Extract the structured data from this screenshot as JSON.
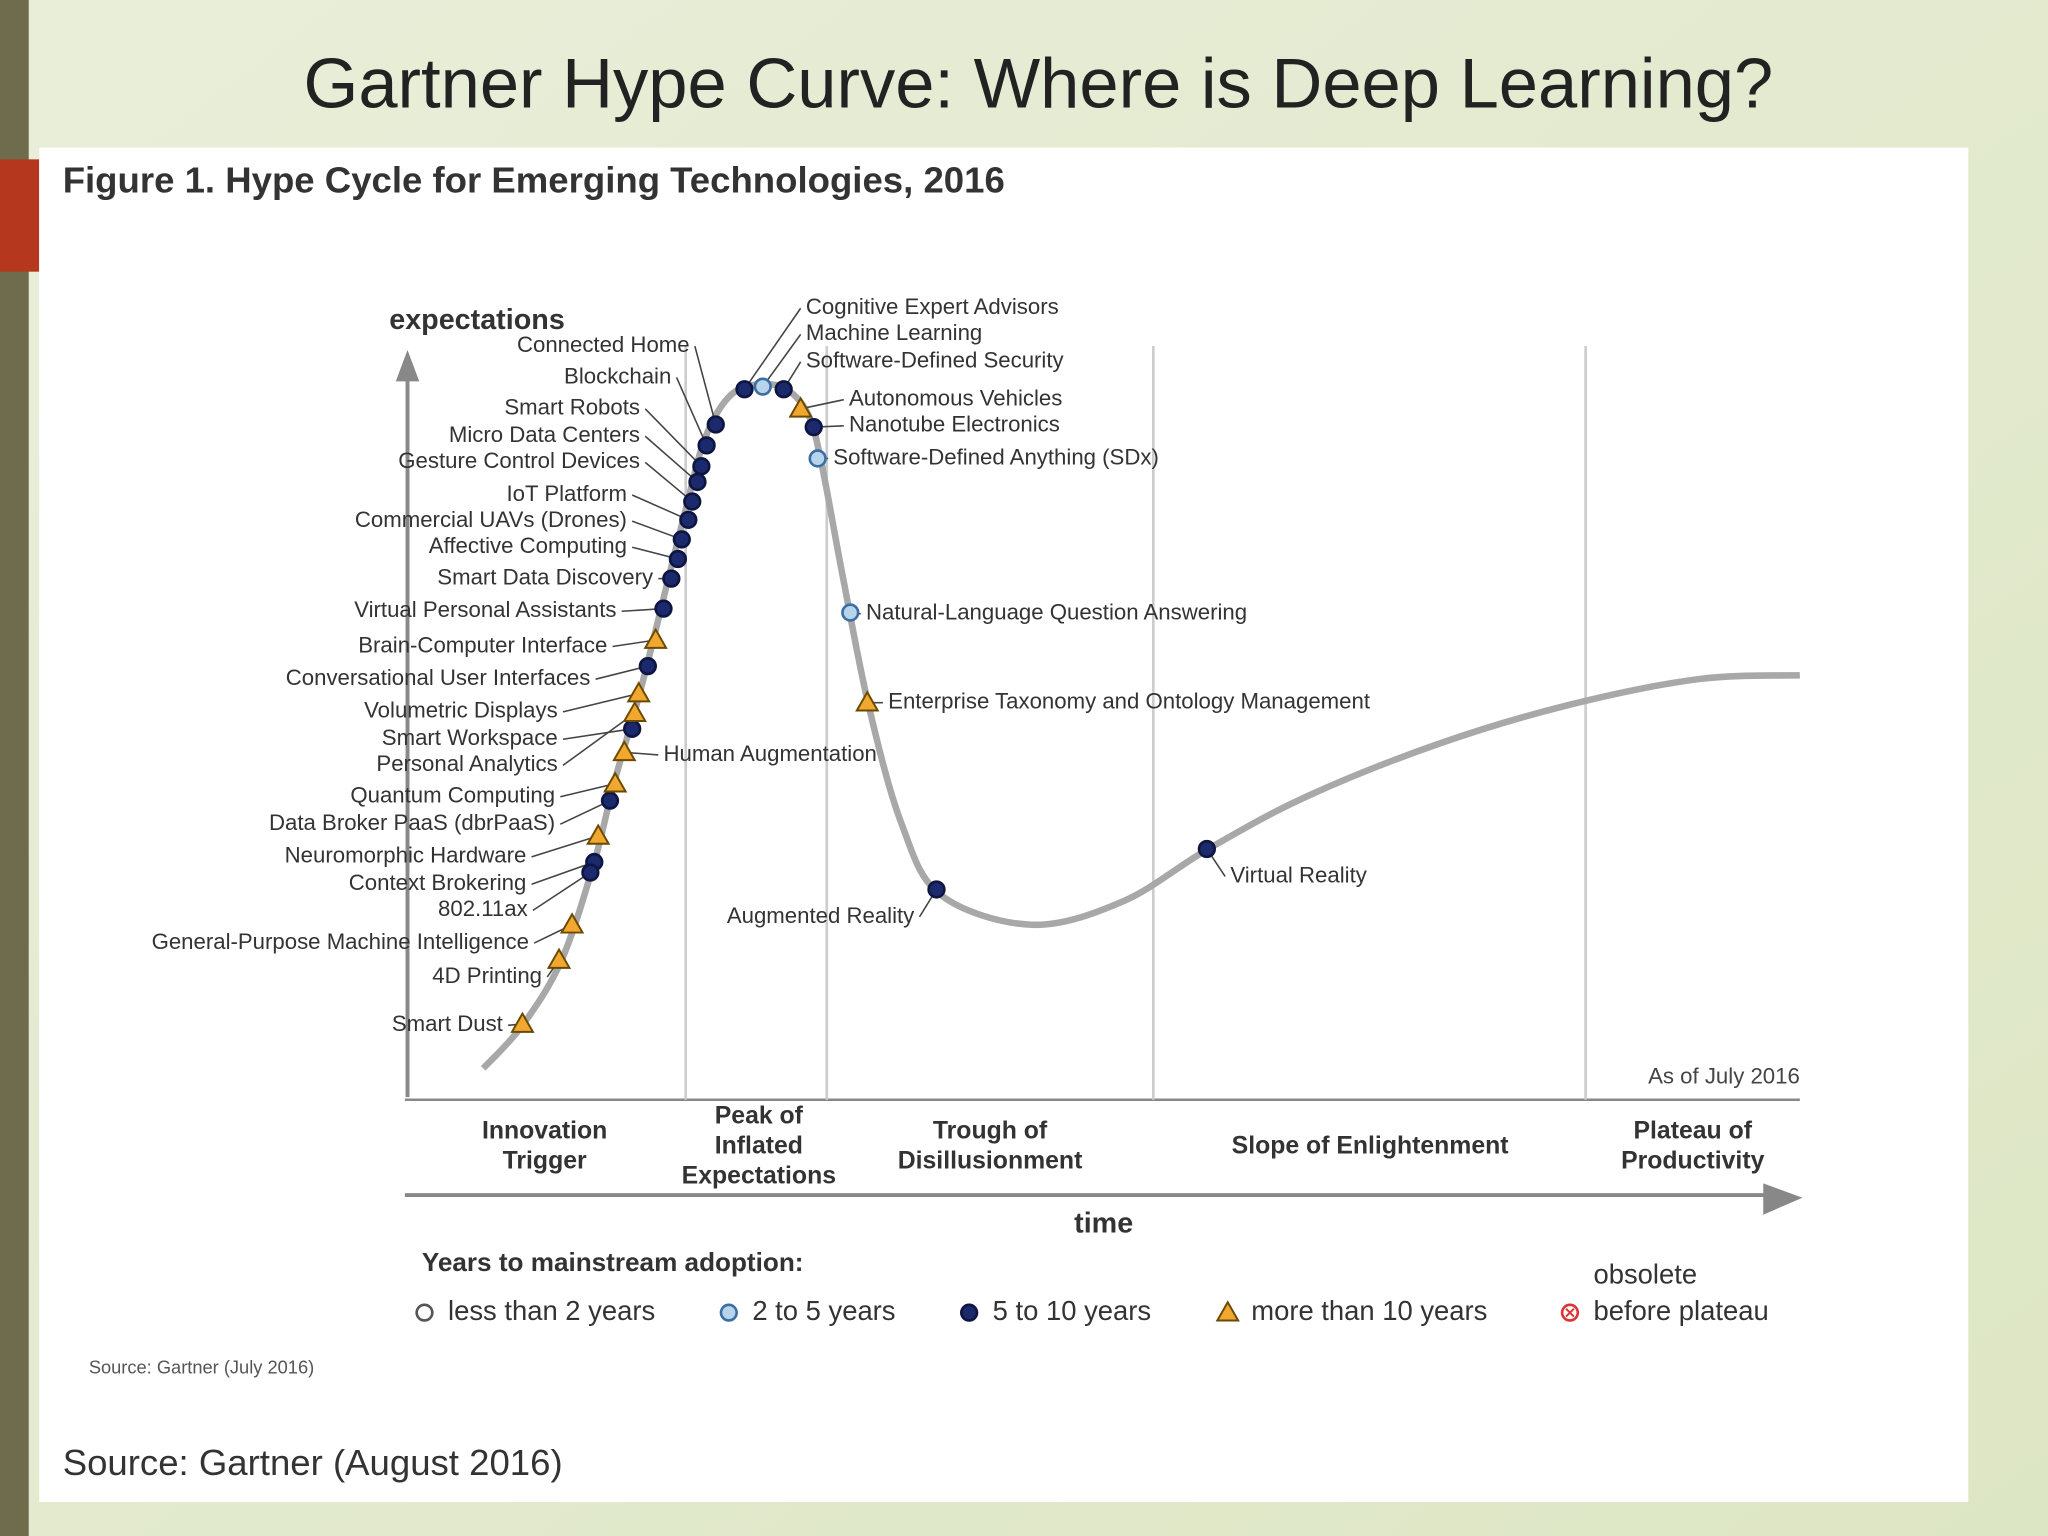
{
  "slide": {
    "title": "Gartner Hype Curve: Where is Deep Learning?",
    "source": "Source: Gartner (August 2016)"
  },
  "figure": {
    "title": "Figure 1. Hype Cycle for Emerging Technologies, 2016",
    "y_axis_label": "expectations",
    "x_axis_label": "time",
    "as_of": "As of July 2016",
    "phases": [
      [
        "Innovation",
        "Trigger"
      ],
      [
        "Peak of",
        "Inflated",
        "Expectations"
      ],
      [
        "Trough of",
        "Disillusionment"
      ],
      [
        "Slope of Enlightenment"
      ],
      [
        "Plateau of",
        "Productivity"
      ]
    ],
    "legend": {
      "title": "Years to mainstream adoption:",
      "items": [
        {
          "label": [
            "less than 2 years"
          ],
          "technologies": []
        },
        {
          "label": [
            "2 to 5 years"
          ],
          "technologies": [
            "Machine Learning",
            "Software-Defined Anything (SDx)",
            "Natural-Language Question Answering"
          ]
        },
        {
          "label": [
            "5 to 10 years"
          ],
          "technologies": [
            "Connected Home",
            "Blockchain",
            "Smart Robots",
            "Micro Data Centers",
            "Gesture Control Devices",
            "IoT Platform",
            "Commercial UAVs (Drones)",
            "Affective Computing",
            "Smart Data Discovery",
            "Virtual Personal Assistants",
            "Conversational User Interfaces",
            "Smart Workspace",
            "Data Broker PaaS (dbrPaaS)",
            "Context Brokering",
            "802.11ax",
            "Cognitive Expert Advisors",
            "Software-Defined Security",
            "Nanotube Electronics",
            "Augmented Reality",
            "Virtual Reality"
          ]
        },
        {
          "label": [
            "more than 10 years"
          ],
          "technologies": [
            "Brain-Computer Interface",
            "Volumetric Displays",
            "Personal Analytics",
            "Human Augmentation",
            "Quantum Computing",
            "Neuromorphic Hardware",
            "General-Purpose Machine Intelligence",
            "4D Printing",
            "Smart Dust",
            "Autonomous Vehicles",
            "Enterprise Taxonomy and Ontology Management"
          ]
        },
        {
          "label": [
            "obsolete",
            "before plateau"
          ],
          "technologies": []
        }
      ]
    },
    "source": "Source: Gartner (July 2016)"
  }
}
